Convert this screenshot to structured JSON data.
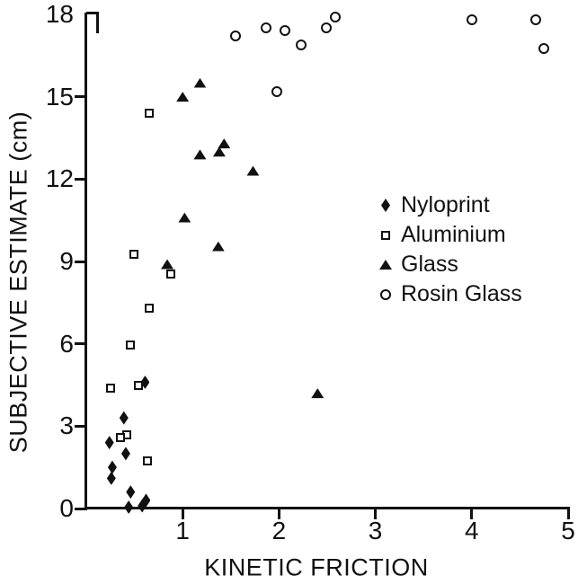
{
  "figure": {
    "ink_color": "#111111",
    "background_color": "#ffffff"
  },
  "chart_data": {
    "type": "scatter",
    "xlabel": "KINETIC FRICTION",
    "ylabel": "SUBJECTIVE ESTIMATE (cm)",
    "xlim": [
      0,
      5
    ],
    "ylim": [
      0,
      18
    ],
    "x_ticks": [
      1,
      2,
      3,
      4,
      5
    ],
    "y_ticks": [
      0,
      3,
      6,
      9,
      12,
      15,
      18
    ],
    "grid": false,
    "legend_position": "middle-right",
    "series": [
      {
        "name": "Nyloprint",
        "marker": "filled-diamond",
        "points": [
          [
            0.61,
            4.6
          ],
          [
            0.39,
            3.3
          ],
          [
            0.24,
            2.4
          ],
          [
            0.41,
            2.0
          ],
          [
            0.27,
            1.5
          ],
          [
            0.26,
            1.1
          ],
          [
            0.46,
            0.6
          ],
          [
            0.62,
            0.3
          ],
          [
            0.58,
            0.1
          ],
          [
            0.44,
            0.05
          ]
        ]
      },
      {
        "name": "Aluminium",
        "marker": "open-square",
        "points": [
          [
            0.65,
            14.4
          ],
          [
            0.49,
            9.25
          ],
          [
            0.88,
            8.55
          ],
          [
            0.65,
            7.3
          ],
          [
            0.46,
            5.95
          ],
          [
            0.25,
            4.4
          ],
          [
            0.54,
            4.5
          ],
          [
            0.42,
            2.7
          ],
          [
            0.35,
            2.6
          ],
          [
            0.63,
            1.75
          ]
        ]
      },
      {
        "name": "Glass",
        "marker": "filled-triangle",
        "points": [
          [
            1.0,
            15.0
          ],
          [
            1.18,
            15.5
          ],
          [
            1.43,
            13.3
          ],
          [
            1.38,
            13.0
          ],
          [
            1.18,
            12.9
          ],
          [
            1.73,
            12.3
          ],
          [
            1.02,
            10.6
          ],
          [
            1.37,
            9.55
          ],
          [
            0.84,
            8.9
          ],
          [
            2.4,
            4.2
          ]
        ]
      },
      {
        "name": "Rosin Glass",
        "marker": "open-circle",
        "points": [
          [
            1.55,
            17.2
          ],
          [
            1.87,
            17.5
          ],
          [
            2.06,
            17.4
          ],
          [
            1.98,
            15.2
          ],
          [
            2.23,
            16.9
          ],
          [
            2.49,
            17.5
          ],
          [
            2.58,
            17.9
          ],
          [
            4.0,
            17.8
          ],
          [
            4.66,
            17.8
          ],
          [
            4.75,
            16.75
          ]
        ]
      }
    ]
  }
}
